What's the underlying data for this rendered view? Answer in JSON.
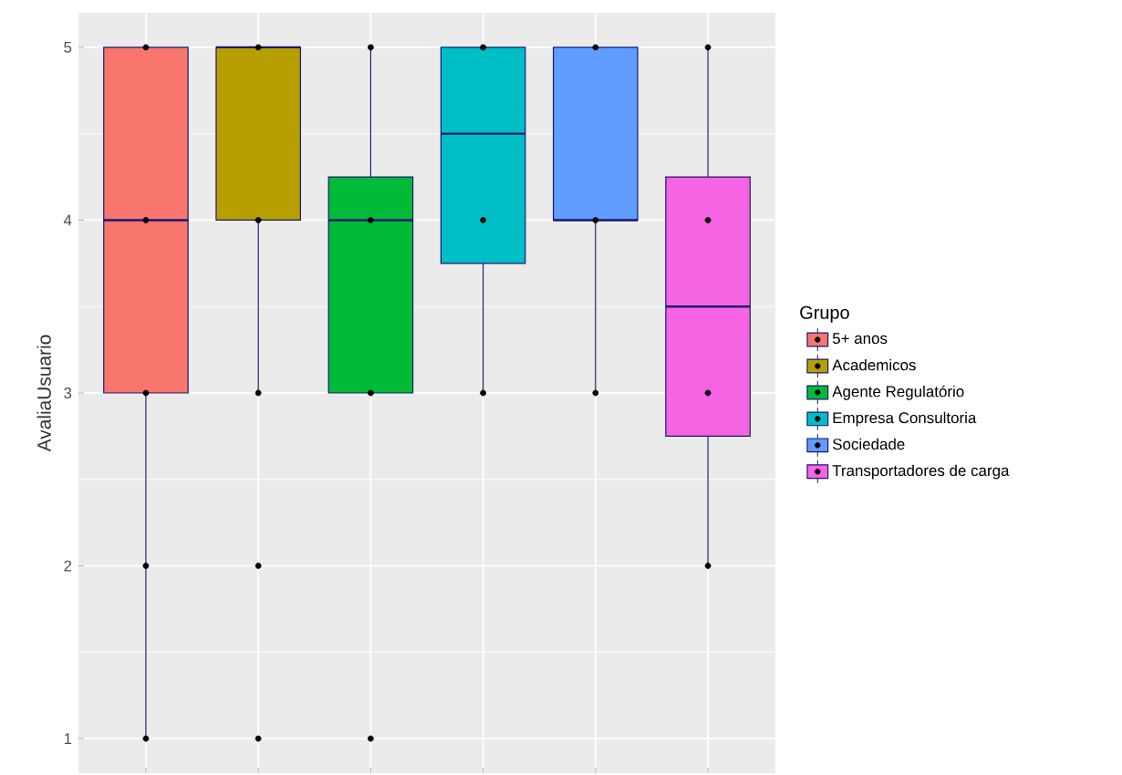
{
  "chart_data": {
    "type": "box",
    "ylabel": "AvaliaUsuario",
    "legend_title": "Grupo",
    "categories": [
      null,
      null,
      null,
      null,
      null,
      null
    ],
    "ylim": [
      0.8,
      5.2
    ],
    "yticks": [
      1,
      2,
      3,
      4,
      5
    ],
    "tick_labels": "y",
    "grid": true,
    "legend": "right",
    "series": [
      {
        "name": "5+ anos",
        "color": "#f8766d",
        "boxes": [
          {
            "low": 1,
            "q1": 3,
            "median": 4,
            "q3": 5,
            "high": 5
          },
          null,
          null,
          null,
          null,
          null
        ]
      },
      {
        "name": "Academicos",
        "color": "#b79f00",
        "boxes": [
          null,
          {
            "low": 3,
            "q1": 4,
            "median": 5,
            "q3": 5,
            "high": 5
          },
          null,
          null,
          null,
          null
        ]
      },
      {
        "name": "Agente Regulatório",
        "color": "#00ba38",
        "boxes": [
          null,
          null,
          {
            "low": 3,
            "q1": 3,
            "median": 4,
            "q3": 4.25,
            "high": 5
          },
          null,
          null,
          null
        ]
      },
      {
        "name": "Empresa Consultoria",
        "color": "#00bfc4",
        "boxes": [
          null,
          null,
          null,
          {
            "low": 3,
            "q1": 3.75,
            "median": 4.5,
            "q3": 5,
            "high": 5
          },
          null,
          null
        ]
      },
      {
        "name": "Sociedade",
        "color": "#619cff",
        "boxes": [
          null,
          null,
          null,
          null,
          {
            "low": 3,
            "q1": 4,
            "median": 4,
            "q3": 5,
            "high": 5
          },
          null
        ]
      },
      {
        "name": "Transportadores de carga",
        "color": "#f564e3",
        "boxes": [
          null,
          null,
          null,
          null,
          null,
          {
            "low": 2,
            "q1": 2.75,
            "median": 3.5,
            "q3": 4.25,
            "high": 5
          }
        ]
      },
      {
        "type": "scatter",
        "color": "#000000",
        "values": [
          5,
          5,
          5,
          5,
          5,
          5
        ]
      },
      {
        "type": "scatter",
        "color": "#000000",
        "values": [
          4,
          4,
          4,
          4,
          4,
          4
        ]
      },
      {
        "type": "scatter",
        "color": "#000000",
        "values": [
          3,
          3,
          3,
          3,
          3,
          3
        ]
      },
      {
        "type": "scatter",
        "color": "#000000",
        "values": [
          2,
          2,
          null,
          null,
          null,
          2
        ]
      },
      {
        "type": "scatter",
        "color": "#000000",
        "values": [
          1,
          1,
          1,
          null,
          null,
          null
        ]
      }
    ]
  }
}
